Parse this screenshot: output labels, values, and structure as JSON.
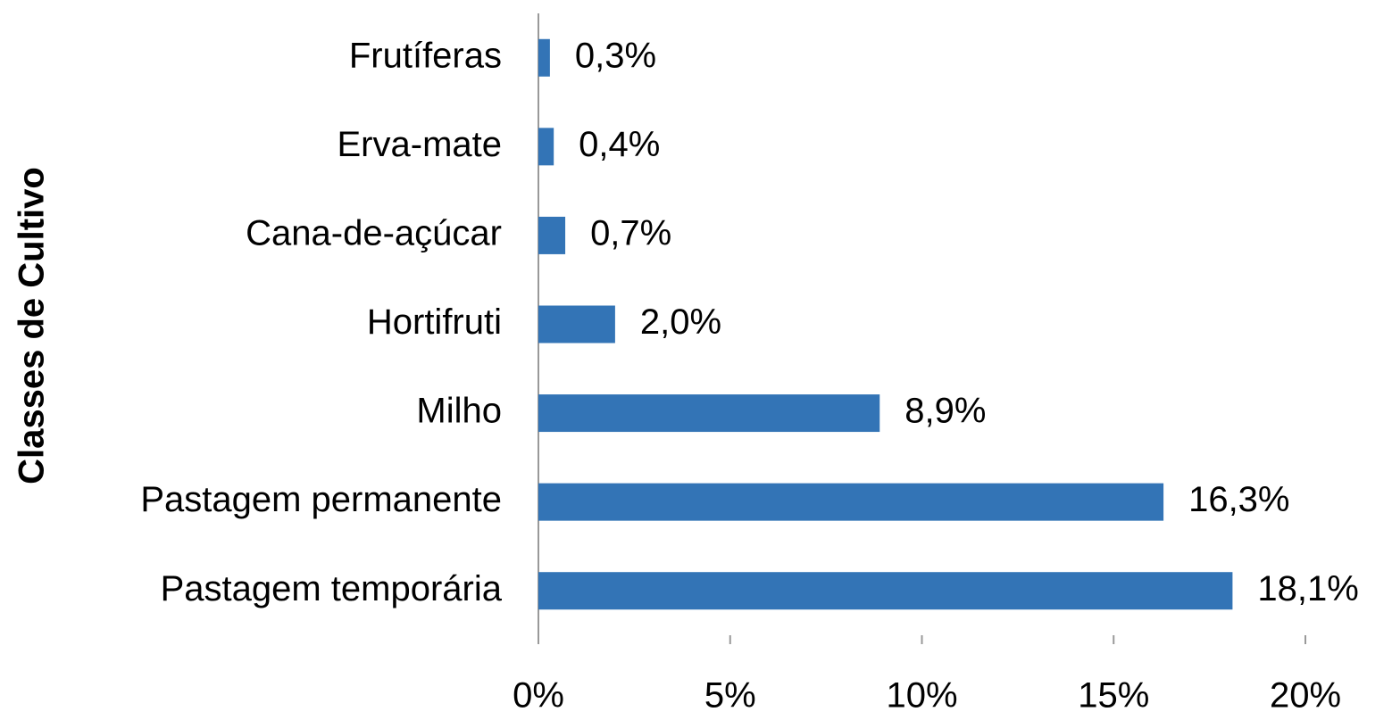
{
  "chart_data": {
    "type": "hbar",
    "y_label": "Classes de Cultivo",
    "categories": [
      "Frutíferas",
      "Erva-mate",
      "Cana-de-açúcar",
      "Hortifruti",
      "Milho",
      "Pastagem permanente",
      "Pastagem temporária"
    ],
    "values": [
      0.3,
      0.4,
      0.7,
      2.0,
      8.9,
      16.3,
      18.1
    ],
    "value_labels": [
      "0,3%",
      "0,4%",
      "0,7%",
      "2,0%",
      "8,9%",
      "16,3%",
      "18,1%"
    ],
    "color": "#3374b6",
    "xlim": [
      0,
      20
    ],
    "xticks": [
      {
        "value": 0,
        "label": "0%"
      },
      {
        "value": 5,
        "label": "5%"
      },
      {
        "value": 10,
        "label": "10%"
      },
      {
        "value": 15,
        "label": "15%"
      },
      {
        "value": 20,
        "label": "20%"
      }
    ],
    "grid": false
  }
}
